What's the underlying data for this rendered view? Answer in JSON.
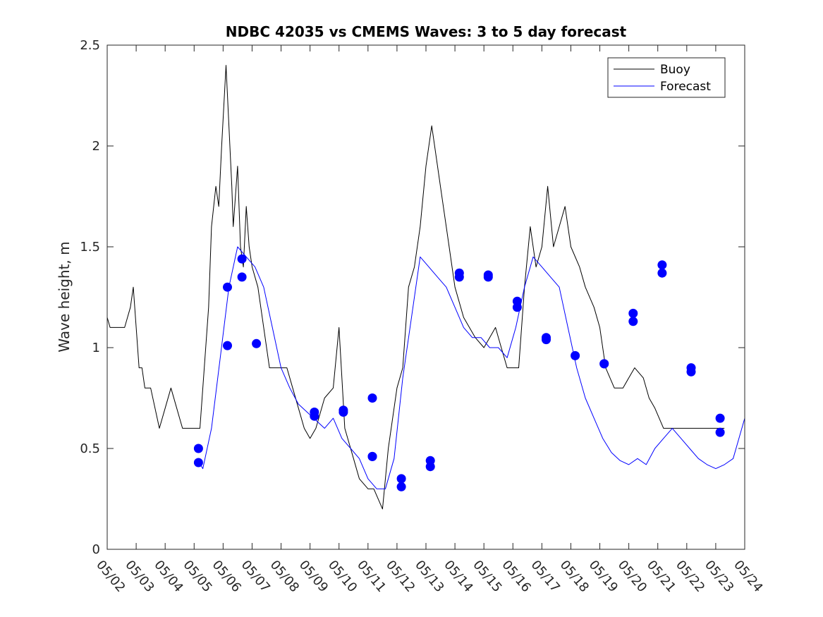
{
  "chart_data": {
    "type": "line",
    "title": "NDBC 42035 vs CMEMS Waves: 3 to 5 day forecast",
    "xlabel": "",
    "ylabel": "Wave height, m",
    "xlim": [
      0,
      22
    ],
    "ylim": [
      0,
      2.5
    ],
    "yticks": [
      0,
      0.5,
      1,
      1.5,
      2,
      2.5
    ],
    "ytick_labels": [
      "0",
      "0.5",
      "1",
      "1.5",
      "2",
      "2.5"
    ],
    "xtick_labels": [
      "05/02",
      "05/03",
      "05/04",
      "05/05",
      "05/06",
      "05/07",
      "05/08",
      "05/09",
      "05/10",
      "05/11",
      "05/12",
      "05/13",
      "05/14",
      "05/15",
      "05/16",
      "05/17",
      "05/18",
      "05/19",
      "05/20",
      "05/21",
      "05/22",
      "05/23",
      "05/24"
    ],
    "legend": {
      "position": "top-right",
      "entries": [
        "Buoy",
        "Forecast"
      ]
    },
    "colors": {
      "buoy": "#000000",
      "forecast": "#0000ff"
    },
    "grid": false,
    "series": [
      {
        "name": "Buoy",
        "color": "#000000",
        "x": [
          0,
          0.1,
          0.3,
          0.6,
          0.8,
          0.9,
          1.0,
          1.1,
          1.2,
          1.3,
          1.5,
          1.8,
          2.0,
          2.2,
          2.4,
          2.6,
          2.8,
          2.9,
          3.0,
          3.2,
          3.5,
          3.6,
          3.75,
          3.85,
          3.95,
          4.1,
          4.2,
          4.3,
          4.35,
          4.4,
          4.5,
          4.6,
          4.7,
          4.8,
          4.9,
          5.0,
          5.2,
          5.4,
          5.6,
          5.8,
          6.0,
          6.2,
          6.4,
          6.6,
          6.8,
          7.0,
          7.2,
          7.5,
          7.8,
          8.0,
          8.2,
          8.5,
          8.7,
          9.0,
          9.2,
          9.5,
          9.7,
          10.0,
          10.2,
          10.4,
          10.6,
          10.8,
          11.0,
          11.2,
          11.5,
          11.8,
          12.0,
          12.3,
          12.5,
          12.7,
          13.0,
          13.2,
          13.4,
          13.6,
          13.8,
          14.0,
          14.2,
          14.4,
          14.6,
          14.8,
          15.0,
          15.2,
          15.4,
          15.6,
          15.8,
          16.0,
          16.3,
          16.5,
          16.8,
          17.0,
          17.2,
          17.5,
          17.8,
          18.0,
          18.2,
          18.5,
          18.7,
          18.9,
          19.2,
          19.5,
          19.8,
          20.0,
          20.2,
          20.4,
          20.6,
          20.8,
          21.0,
          21.1,
          21.3
        ],
        "values": [
          1.15,
          1.1,
          1.1,
          1.1,
          1.2,
          1.3,
          1.1,
          0.9,
          0.9,
          0.8,
          0.8,
          0.6,
          0.7,
          0.8,
          0.7,
          0.6,
          0.6,
          0.6,
          0.6,
          0.6,
          1.2,
          1.6,
          1.8,
          1.7,
          2.0,
          2.4,
          2.1,
          1.8,
          1.6,
          1.7,
          1.9,
          1.5,
          1.4,
          1.7,
          1.5,
          1.4,
          1.3,
          1.1,
          0.9,
          0.9,
          0.9,
          0.9,
          0.8,
          0.7,
          0.6,
          0.55,
          0.6,
          0.75,
          0.8,
          1.1,
          0.6,
          0.45,
          0.35,
          0.3,
          0.3,
          0.2,
          0.5,
          0.8,
          0.9,
          1.3,
          1.4,
          1.6,
          1.9,
          2.1,
          1.8,
          1.5,
          1.3,
          1.15,
          1.1,
          1.05,
          1.0,
          1.05,
          1.1,
          1.0,
          0.9,
          0.9,
          0.9,
          1.3,
          1.6,
          1.4,
          1.5,
          1.8,
          1.5,
          1.6,
          1.7,
          1.5,
          1.4,
          1.3,
          1.2,
          1.1,
          0.9,
          0.8,
          0.8,
          0.85,
          0.9,
          0.85,
          0.75,
          0.7,
          0.6,
          0.6,
          0.6,
          0.6,
          0.6,
          0.6,
          0.6,
          0.6,
          0.6,
          0.6,
          0.6
        ]
      },
      {
        "name": "Forecast",
        "color": "#0000ff",
        "x": [
          3.1,
          3.3,
          3.6,
          3.9,
          4.2,
          4.5,
          4.8,
          5.1,
          5.4,
          5.7,
          6.0,
          6.3,
          6.6,
          6.9,
          7.2,
          7.5,
          7.8,
          8.1,
          8.4,
          8.7,
          9.0,
          9.3,
          9.6,
          9.9,
          10.2,
          10.5,
          10.8,
          11.1,
          11.4,
          11.7,
          12.0,
          12.3,
          12.6,
          12.9,
          13.2,
          13.5,
          13.8,
          14.1,
          14.4,
          14.7,
          15.0,
          15.3,
          15.6,
          15.9,
          16.2,
          16.5,
          16.8,
          17.1,
          17.4,
          17.7,
          18.0,
          18.3,
          18.6,
          18.9,
          19.2,
          19.5,
          19.8,
          20.1,
          20.4,
          20.7,
          21.0,
          21.3,
          21.6,
          22.0
        ],
        "values": [
          0.45,
          0.4,
          0.6,
          0.95,
          1.3,
          1.5,
          1.45,
          1.4,
          1.3,
          1.1,
          0.9,
          0.8,
          0.72,
          0.68,
          0.64,
          0.6,
          0.65,
          0.55,
          0.5,
          0.45,
          0.35,
          0.3,
          0.3,
          0.45,
          0.85,
          1.15,
          1.45,
          1.4,
          1.35,
          1.3,
          1.2,
          1.1,
          1.05,
          1.05,
          1.0,
          1.0,
          0.95,
          1.1,
          1.3,
          1.45,
          1.4,
          1.35,
          1.3,
          1.1,
          0.9,
          0.75,
          0.65,
          0.55,
          0.48,
          0.44,
          0.42,
          0.45,
          0.42,
          0.5,
          0.55,
          0.6,
          0.55,
          0.5,
          0.45,
          0.42,
          0.4,
          0.42,
          0.45,
          0.65
        ]
      }
    ],
    "markers": {
      "name": "Forecast points",
      "color": "#0000ff",
      "x": [
        3.15,
        3.15,
        4.15,
        4.15,
        4.65,
        4.65,
        5.15,
        7.15,
        7.15,
        8.15,
        8.15,
        9.15,
        9.15,
        9.15,
        10.15,
        10.15,
        11.15,
        11.15,
        12.15,
        12.15,
        13.15,
        13.15,
        14.15,
        14.15,
        15.15,
        15.15,
        16.15,
        17.15,
        17.15,
        18.15,
        18.15,
        19.15,
        19.15,
        20.15,
        20.15,
        21.15,
        21.15
      ],
      "values": [
        0.5,
        0.43,
        1.3,
        1.01,
        1.44,
        1.35,
        1.02,
        0.68,
        0.66,
        0.69,
        0.68,
        0.75,
        0.46,
        0.46,
        0.35,
        0.31,
        0.44,
        0.41,
        1.37,
        1.35,
        1.36,
        1.35,
        1.23,
        1.2,
        1.05,
        1.04,
        0.96,
        0.92,
        0.92,
        1.17,
        1.13,
        1.41,
        1.37,
        0.9,
        0.88,
        0.65,
        0.58
      ]
    }
  }
}
